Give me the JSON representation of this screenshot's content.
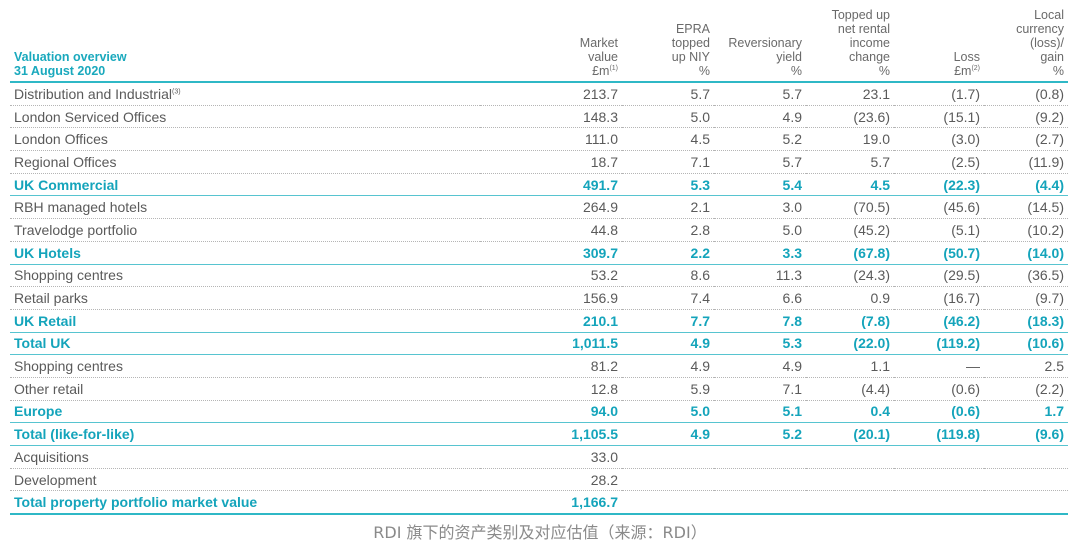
{
  "table": {
    "header": {
      "label_line1": "Valuation overview",
      "label_line2": "31 August 2020",
      "market_value": [
        "Market",
        "value",
        "£m"
      ],
      "market_value_note": "(1)",
      "epra": [
        "EPRA",
        "topped",
        "up NIY",
        "%"
      ],
      "reversionary": [
        "Reversionary",
        "yield",
        "%"
      ],
      "topped_up": [
        "Topped up",
        "net rental",
        "income",
        "change",
        "%"
      ],
      "loss": [
        "Loss",
        "£m"
      ],
      "loss_note": "(2)",
      "local": [
        "Local",
        "currency",
        "(loss)/",
        "gain",
        "%"
      ]
    },
    "rows": [
      {
        "label": "Distribution and Industrial",
        "note": "(3)",
        "mv": "213.7",
        "epra": "5.7",
        "rev": "5.7",
        "top": "23.1",
        "loss": "(1.7)",
        "local": "(0.8)",
        "style": "normal"
      },
      {
        "label": "London Serviced Offices",
        "note": "",
        "mv": "148.3",
        "epra": "5.0",
        "rev": "4.9",
        "top": "(23.6)",
        "loss": "(15.1)",
        "local": "(9.2)",
        "style": "normal"
      },
      {
        "label": "London Offices",
        "note": "",
        "mv": "111.0",
        "epra": "4.5",
        "rev": "5.2",
        "top": "19.0",
        "loss": "(3.0)",
        "local": "(2.7)",
        "style": "normal"
      },
      {
        "label": "Regional Offices",
        "note": "",
        "mv": "18.7",
        "epra": "7.1",
        "rev": "5.7",
        "top": "5.7",
        "loss": "(2.5)",
        "local": "(11.9)",
        "style": "normal"
      },
      {
        "label": "UK Commercial",
        "note": "",
        "mv": "491.7",
        "epra": "5.3",
        "rev": "5.4",
        "top": "4.5",
        "loss": "(22.3)",
        "local": "(4.4)",
        "style": "subtotal"
      },
      {
        "label": "RBH managed hotels",
        "note": "",
        "mv": "264.9",
        "epra": "2.1",
        "rev": "3.0",
        "top": "(70.5)",
        "loss": "(45.6)",
        "local": "(14.5)",
        "style": "normal"
      },
      {
        "label": "Travelodge portfolio",
        "note": "",
        "mv": "44.8",
        "epra": "2.8",
        "rev": "5.0",
        "top": "(45.2)",
        "loss": "(5.1)",
        "local": "(10.2)",
        "style": "normal"
      },
      {
        "label": "UK Hotels",
        "note": "",
        "mv": "309.7",
        "epra": "2.2",
        "rev": "3.3",
        "top": "(67.8)",
        "loss": "(50.7)",
        "local": "(14.0)",
        "style": "subtotal"
      },
      {
        "label": "Shopping centres",
        "note": "",
        "mv": "53.2",
        "epra": "8.6",
        "rev": "11.3",
        "top": "(24.3)",
        "loss": "(29.5)",
        "local": "(36.5)",
        "style": "normal"
      },
      {
        "label": "Retail parks",
        "note": "",
        "mv": "156.9",
        "epra": "7.4",
        "rev": "6.6",
        "top": "0.9",
        "loss": "(16.7)",
        "local": "(9.7)",
        "style": "normal"
      },
      {
        "label": "UK Retail",
        "note": "",
        "mv": "210.1",
        "epra": "7.7",
        "rev": "7.8",
        "top": "(7.8)",
        "loss": "(46.2)",
        "local": "(18.3)",
        "style": "subtotal"
      },
      {
        "label": "Total UK",
        "note": "",
        "mv": "1,011.5",
        "epra": "4.9",
        "rev": "5.3",
        "top": "(22.0)",
        "loss": "(119.2)",
        "local": "(10.6)",
        "style": "subtotal"
      },
      {
        "label": "Shopping centres",
        "note": "",
        "mv": "81.2",
        "epra": "4.9",
        "rev": "4.9",
        "top": "1.1",
        "loss": "—",
        "local": "2.5",
        "style": "normal"
      },
      {
        "label": "Other retail",
        "note": "",
        "mv": "12.8",
        "epra": "5.9",
        "rev": "7.1",
        "top": "(4.4)",
        "loss": "(0.6)",
        "local": "(2.2)",
        "style": "normal"
      },
      {
        "label": "Europe",
        "note": "",
        "mv": "94.0",
        "epra": "5.0",
        "rev": "5.1",
        "top": "0.4",
        "loss": "(0.6)",
        "local": "1.7",
        "style": "subtotal"
      },
      {
        "label": "Total (like-for-like)",
        "note": "",
        "mv": "1,105.5",
        "epra": "4.9",
        "rev": "5.2",
        "top": "(20.1)",
        "loss": "(119.8)",
        "local": "(9.6)",
        "style": "subtotal"
      },
      {
        "label": "Acquisitions",
        "note": "",
        "mv": "33.0",
        "epra": "",
        "rev": "",
        "top": "",
        "loss": "",
        "local": "",
        "style": "normal"
      },
      {
        "label": "Development",
        "note": "",
        "mv": "28.2",
        "epra": "",
        "rev": "",
        "top": "",
        "loss": "",
        "local": "",
        "style": "normal"
      },
      {
        "label": "Total property portfolio market value",
        "note": "",
        "mv": "1,166.7",
        "epra": "",
        "rev": "",
        "top": "",
        "loss": "",
        "local": "",
        "style": "final"
      }
    ]
  },
  "caption": "RDI 旗下的资产类别及对应估值（来源：RDI）",
  "colors": {
    "accent": "#14a4bb",
    "rule": "#2fb8c6",
    "text": "#5a5a5a"
  }
}
